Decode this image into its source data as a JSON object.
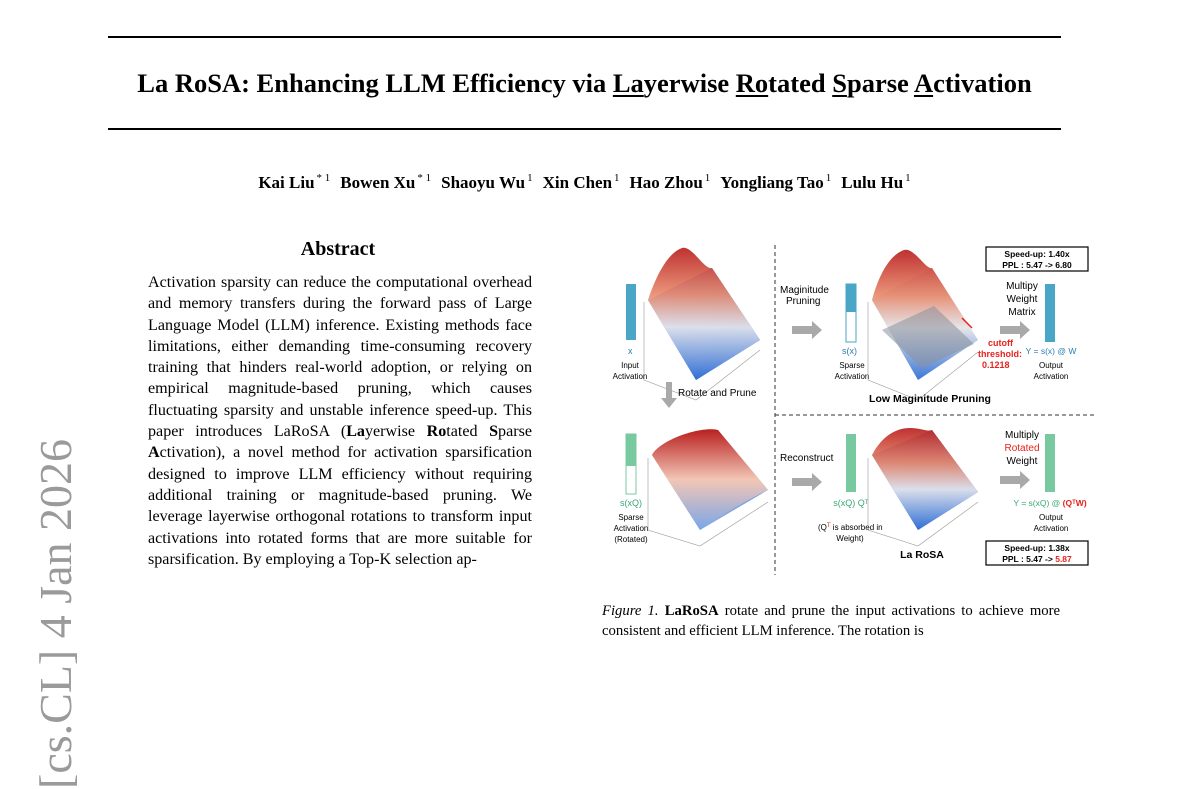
{
  "paper": {
    "title_parts": [
      {
        "text": "La RoSA: Enhancing LLM Efficiency via ",
        "u": false
      },
      {
        "text": "La",
        "u": true
      },
      {
        "text": "yerwise ",
        "u": false
      },
      {
        "text": "Ro",
        "u": true
      },
      {
        "text": "tated ",
        "u": false
      },
      {
        "text": "S",
        "u": true
      },
      {
        "text": "parse ",
        "u": false
      },
      {
        "text": "A",
        "u": true
      },
      {
        "text": "ctivation",
        "u": false
      }
    ],
    "authors": [
      {
        "name": "Kai Liu",
        "mark": "* 1"
      },
      {
        "name": "Bowen Xu",
        "mark": "* 1"
      },
      {
        "name": "Shaoyu Wu",
        "mark": "1"
      },
      {
        "name": "Xin Chen",
        "mark": "1"
      },
      {
        "name": "Hao Zhou",
        "mark": "1"
      },
      {
        "name": "Yongliang Tao",
        "mark": "1"
      },
      {
        "name": "Lulu Hu",
        "mark": "1"
      }
    ],
    "arxiv_stamp": "[cs.CL]  4 Jan 2026",
    "abstract_heading": "Abstract",
    "abstract_segments": [
      {
        "t": "Activation sparsity can reduce the computational overhead and memory transfers during the forward pass of Large Language Model (LLM) inference. Existing methods face limitations, either demanding time-consuming recovery training that hinders real-world adoption, or relying on empirical magnitude-based pruning, which causes fluctuating sparsity and unstable inference speed-up. This paper introduces LaRoSA (",
        "b": false
      },
      {
        "t": "La",
        "b": true
      },
      {
        "t": "yerwise ",
        "b": false
      },
      {
        "t": "Ro",
        "b": true
      },
      {
        "t": "tated ",
        "b": false
      },
      {
        "t": "S",
        "b": true
      },
      {
        "t": "parse ",
        "b": false
      },
      {
        "t": "A",
        "b": true
      },
      {
        "t": "ctivation), a novel method for activation sparsification designed to improve LLM efficiency without requiring additional training or magnitude-based pruning. We leverage layerwise orthogonal rotations to transform input activations into rotated forms that are more suitable for sparsification. By employing a Top-K selection ap-",
        "b": false
      }
    ],
    "caption_label": "Figure 1.",
    "caption_bold": "LaRoSA",
    "caption_text": " rotate and prune the input activations to achieve more consistent and efficient LLM inference.  The rotation is"
  },
  "figure": {
    "top_left": {
      "vector_label": "x",
      "caption_line1": "Input",
      "caption_line2": "Activation"
    },
    "rotate_label": "Rotate and Prune",
    "top_mid": {
      "step_line1": "Maginitude",
      "step_line2": "Pruning",
      "vector_label": "s(x)",
      "caption_line1": "Sparse",
      "caption_line2": "Activation"
    },
    "cutoff": {
      "line1": "cutoff",
      "line2": "threshold:",
      "value": "0.1218"
    },
    "top_right": {
      "step_line1": "Multipy",
      "step_line2": "Weight",
      "step_line3": "Matrix",
      "formula": "Y = s(x) @ W",
      "caption_line1": "Output",
      "caption_line2": "Activation"
    },
    "top_section_label": "Low Maginitude Pruning",
    "top_stats": {
      "speedup": "Speed-up: 1.40x",
      "ppl_prefix": "PPL : 5.47 -> ",
      "ppl_value": "6.80"
    },
    "bottom_left": {
      "vector_label": "s(xQ)",
      "caption_line1": "Sparse",
      "caption_line2": "Activation",
      "caption_line3": "(Rotated)"
    },
    "bottom_mid": {
      "step": "Reconstruct",
      "formula": "s(xQ) Qᵀ",
      "note_line1_prefix": "(Q",
      "note_line1_sup": "T",
      "note_line1_suffix": " is absorbed in",
      "note_line2": "Weight)"
    },
    "bottom_right": {
      "step_line1": "Multiply",
      "step_line2": "Rotated",
      "step_line3": "Weight",
      "formula_prefix": "Y = s(xQ) @ ",
      "formula_highlight": "(QᵀW)",
      "caption_line1": "Output",
      "caption_line2": "Activation"
    },
    "bottom_section_label": "La RoSA",
    "bottom_stats": {
      "speedup": "Speed-up: 1.38x",
      "ppl_prefix": "PPL : 5.47 -> ",
      "ppl_value": "5.87"
    },
    "colors": {
      "blue_vector": "#4aa6c6",
      "green_vector": "#78c9a0",
      "red_text": "#e8221c",
      "arrow_gray": "#a9a9a9"
    }
  }
}
